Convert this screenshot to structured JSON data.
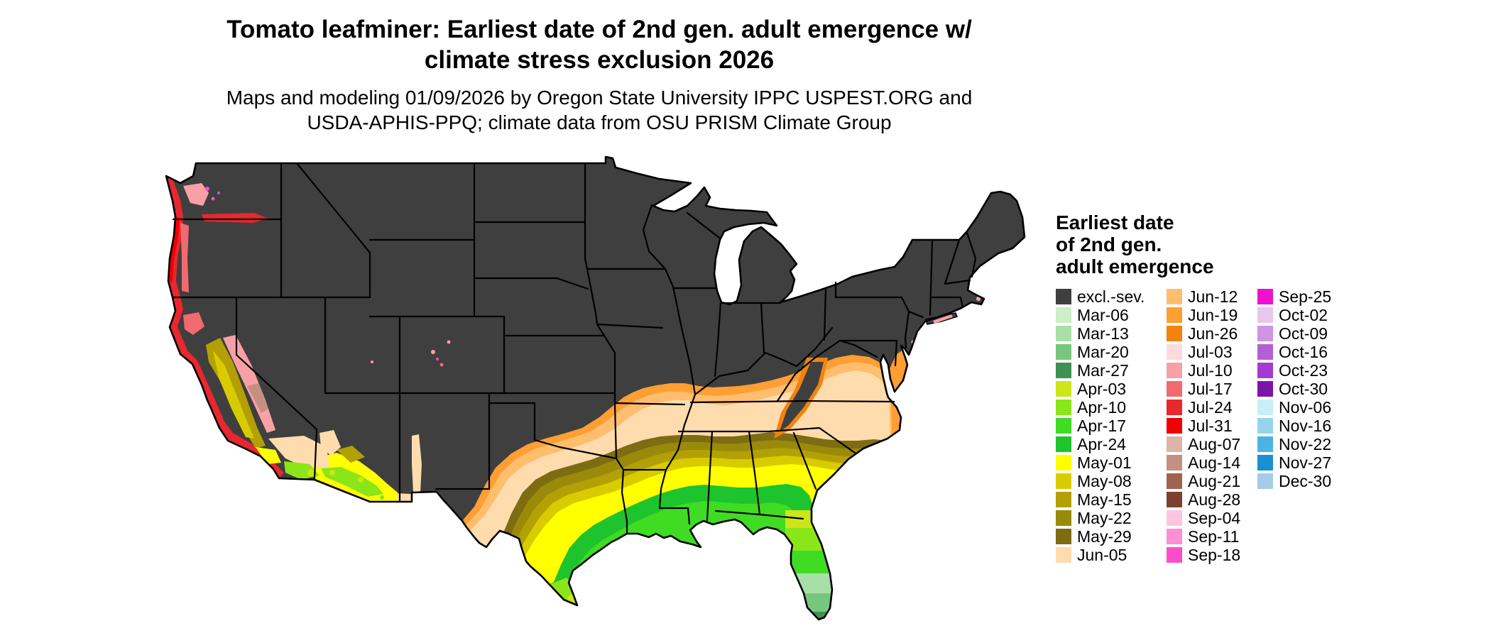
{
  "title": {
    "line1": "Tomato leafminer: Earliest date of 2nd gen. adult emergence w/",
    "line2": "climate stress exclusion 2026"
  },
  "subtitle": {
    "line1": "Maps and modeling 01/09/2026 by Oregon State University IPPC USPEST.ORG and",
    "line2": "USDA-APHIS-PPQ; climate data from OSU PRISM Climate Group"
  },
  "legend": {
    "title_lines": [
      "Earliest date",
      "of 2nd gen.",
      "adult emergence"
    ],
    "columns": [
      {
        "entries": [
          {
            "label": "excl.-sev.",
            "color": "#3f3f3f"
          },
          {
            "label": "Mar-06",
            "color": "#cdeec6"
          },
          {
            "label": "Mar-13",
            "color": "#a8dfa8"
          },
          {
            "label": "Mar-20",
            "color": "#76c77d"
          },
          {
            "label": "Mar-27",
            "color": "#3f9152"
          },
          {
            "label": "Apr-03",
            "color": "#cce619"
          },
          {
            "label": "Apr-10",
            "color": "#8ae619"
          },
          {
            "label": "Apr-17",
            "color": "#3fdc23"
          },
          {
            "label": "Apr-24",
            "color": "#1ec42d"
          },
          {
            "label": "May-01",
            "color": "#ffff00"
          },
          {
            "label": "May-08",
            "color": "#d8cc00"
          },
          {
            "label": "May-15",
            "color": "#b3a005"
          },
          {
            "label": "May-22",
            "color": "#9a8a0a"
          },
          {
            "label": "May-29",
            "color": "#7d6c12"
          },
          {
            "label": "Jun-05",
            "color": "#ffdcae"
          }
        ]
      },
      {
        "entries": [
          {
            "label": "Jun-12",
            "color": "#ffbe6e"
          },
          {
            "label": "Jun-19",
            "color": "#ff9e33"
          },
          {
            "label": "Jun-26",
            "color": "#f2830f"
          },
          {
            "label": "Jul-03",
            "color": "#ffd9dc"
          },
          {
            "label": "Jul-10",
            "color": "#f9a0a6"
          },
          {
            "label": "Jul-17",
            "color": "#f26a6f"
          },
          {
            "label": "Jul-24",
            "color": "#e8272e"
          },
          {
            "label": "Jul-31",
            "color": "#f20000"
          },
          {
            "label": "Aug-07",
            "color": "#dcb4a8"
          },
          {
            "label": "Aug-14",
            "color": "#c49082"
          },
          {
            "label": "Aug-21",
            "color": "#a0634e"
          },
          {
            "label": "Aug-28",
            "color": "#7a4030"
          },
          {
            "label": "Sep-04",
            "color": "#ffc4e0"
          },
          {
            "label": "Sep-11",
            "color": "#ff8ed2"
          },
          {
            "label": "Sep-18",
            "color": "#fb4ecb"
          }
        ]
      },
      {
        "entries": [
          {
            "label": "Sep-25",
            "color": "#f011d0"
          },
          {
            "label": "Oct-02",
            "color": "#e8c6ee"
          },
          {
            "label": "Oct-09",
            "color": "#cf94e4"
          },
          {
            "label": "Oct-16",
            "color": "#b55fd6"
          },
          {
            "label": "Oct-23",
            "color": "#a43ad2"
          },
          {
            "label": "Oct-30",
            "color": "#7d14a8"
          },
          {
            "label": "Nov-06",
            "color": "#c8eef8"
          },
          {
            "label": "Nov-16",
            "color": "#96d4ee"
          },
          {
            "label": "Nov-22",
            "color": "#4ab4e4"
          },
          {
            "label": "Nov-27",
            "color": "#1890d2"
          },
          {
            "label": "Dec-30",
            "color": "#a6cbe8"
          }
        ]
      }
    ]
  },
  "map": {
    "region": "Continental United States",
    "stroke_color": "#000000",
    "fills": {
      "excluded": "#3f3f3f",
      "jun26": "#f2830f",
      "jun19": "#ff9e33",
      "jun12": "#ffbe6e",
      "jun05": "#ffdcae",
      "may29": "#7d6c12",
      "may22": "#9a8a0a",
      "may15": "#b3a005",
      "may08": "#d8cc00",
      "may01": "#ffff00",
      "apr03": "#cce619",
      "apr10": "#8ae619",
      "apr17": "#3fdc23",
      "apr24": "#1ec42d",
      "mar13": "#a8dfa8",
      "mar20": "#76c77d",
      "mar27": "#3f9152",
      "jul03": "#ffd9dc",
      "jul10": "#f9a0a6",
      "jul17": "#f26a6f",
      "jul24": "#e8272e",
      "jul31": "#f20000",
      "aug14": "#c49082",
      "sep18": "#fb4ecb",
      "oct16": "#b55fd6"
    }
  }
}
